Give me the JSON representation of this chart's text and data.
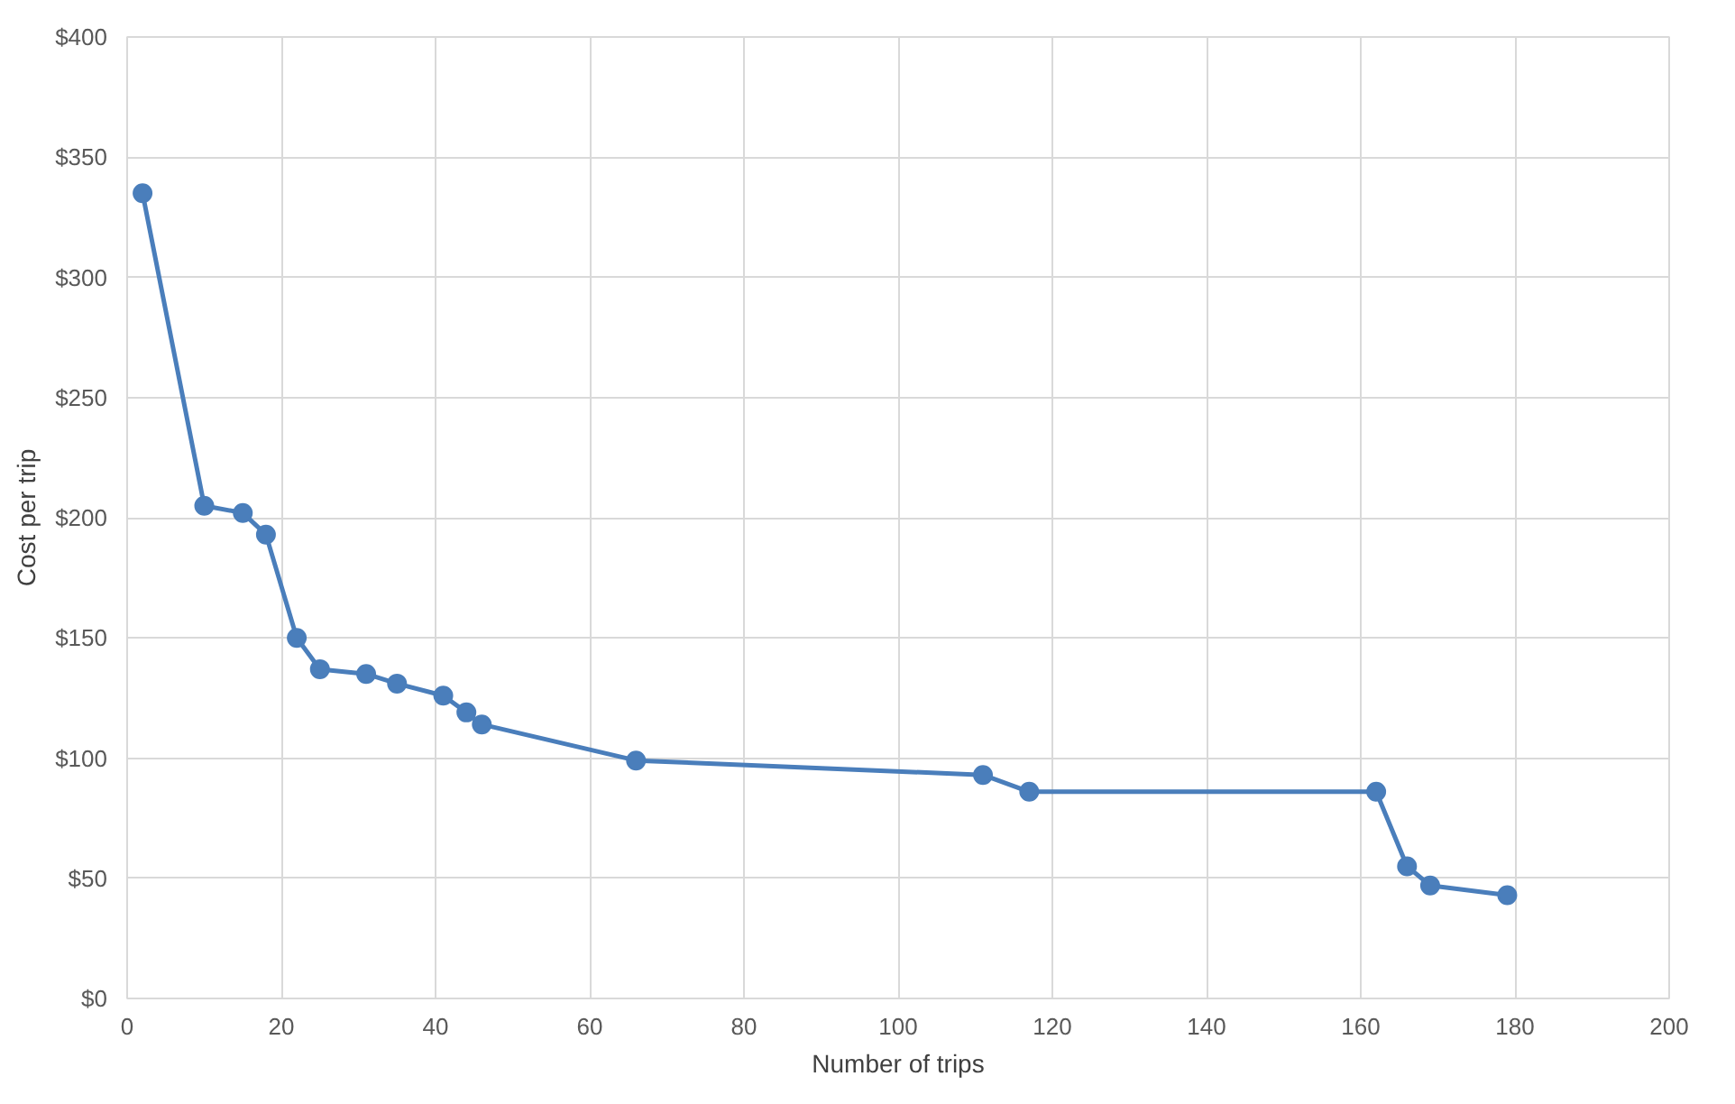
{
  "chart_data": {
    "type": "line",
    "xlabel": "Number of trips",
    "ylabel": "Cost per trip",
    "x": [
      2,
      10,
      15,
      18,
      22,
      25,
      31,
      35,
      41,
      44,
      46,
      66,
      111,
      117,
      162,
      166,
      169,
      179
    ],
    "series": [
      {
        "color": "#4a7ebb",
        "values": [
          335,
          205,
          202,
          193,
          150,
          137,
          135,
          131,
          126,
          119,
          114,
          99,
          93,
          86,
          86,
          55,
          47,
          43
        ]
      }
    ],
    "xlim": [
      0,
      200
    ],
    "xticks": [
      0,
      20,
      40,
      60,
      80,
      100,
      120,
      140,
      160,
      180,
      200
    ],
    "ylim": [
      0,
      400
    ],
    "yticks": [
      {
        "value": 0,
        "label": "$0"
      },
      {
        "value": 50,
        "label": "$50"
      },
      {
        "value": 100,
        "label": "$100"
      },
      {
        "value": 150,
        "label": "$150"
      },
      {
        "value": 200,
        "label": "$200"
      },
      {
        "value": 250,
        "label": "$250"
      },
      {
        "value": 300,
        "label": "$300"
      },
      {
        "value": 350,
        "label": "$350"
      },
      {
        "value": 400,
        "label": "$400"
      }
    ],
    "grid": true,
    "marker": "circle",
    "line_style": "solid"
  }
}
